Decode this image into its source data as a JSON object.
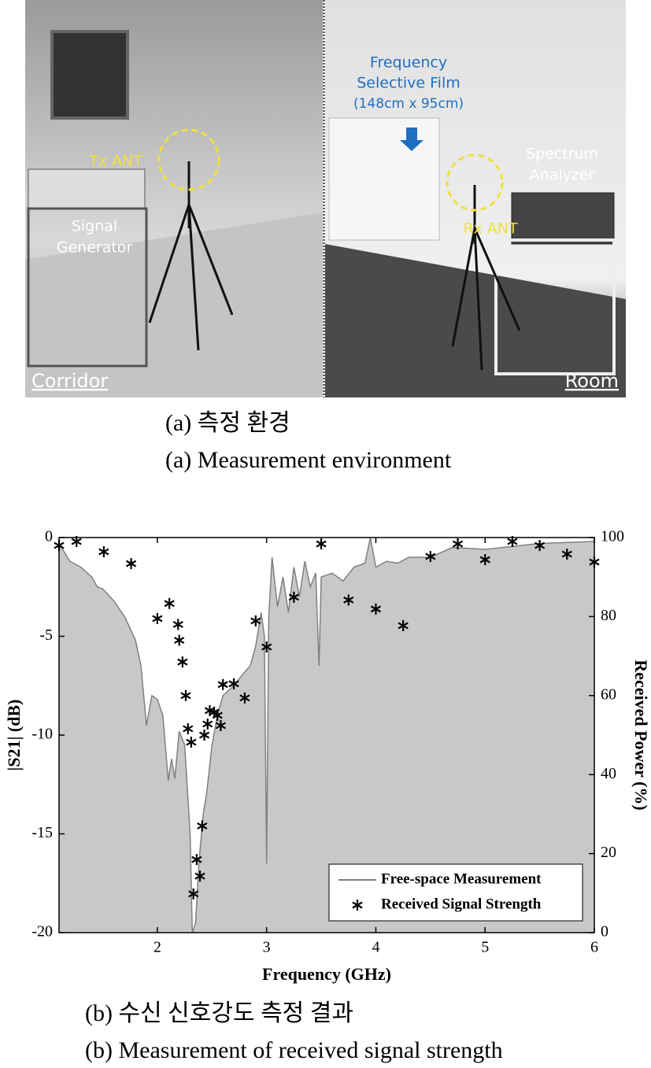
{
  "photo": {
    "tx_label": "Tx ANT",
    "signal_generator_label": [
      "Signal",
      "Generator"
    ],
    "fsf_label": [
      "Frequency",
      "Selective Film",
      "(148cm x 95cm)"
    ],
    "spectrum_label": [
      "Spectrum",
      "Analyzer"
    ],
    "rx_label": "Rx ANT",
    "left_label": "Corridor",
    "right_label": "Room",
    "caption_ko": "(a) 측정 환경",
    "caption_en": "(a) Measurement environment"
  },
  "chart_data": {
    "type": "line",
    "xlabel": "Frequency (GHz)",
    "ylabel": "|S21| (dB)",
    "y2label": "Received Power (%)",
    "xlim": [
      1.1,
      6
    ],
    "xticks": [
      2,
      3,
      4,
      5,
      6
    ],
    "ylim": [
      -20,
      0
    ],
    "yticks": [
      -20,
      -15,
      -10,
      -5,
      0
    ],
    "y2lim": [
      0,
      100
    ],
    "y2ticks": [
      0,
      20,
      40,
      60,
      80,
      100
    ],
    "legend": "lower right",
    "series": [
      {
        "name": "Free-space Measurement",
        "type": "line",
        "color": "#808080",
        "fill": "#c8c8c8",
        "x": [
          1.1,
          1.2,
          1.3,
          1.4,
          1.45,
          1.5,
          1.6,
          1.7,
          1.8,
          1.85,
          1.9,
          1.95,
          2.0,
          2.05,
          2.1,
          2.13,
          2.16,
          2.2,
          2.25,
          2.3,
          2.32,
          2.35,
          2.38,
          2.42,
          2.45,
          2.5,
          2.55,
          2.6,
          2.7,
          2.8,
          2.85,
          2.9,
          2.95,
          2.98,
          3.0,
          3.02,
          3.05,
          3.1,
          3.15,
          3.2,
          3.25,
          3.3,
          3.35,
          3.4,
          3.45,
          3.48,
          3.5,
          3.6,
          3.7,
          3.8,
          3.9,
          3.95,
          4.0,
          4.1,
          4.2,
          4.3,
          4.5,
          4.7,
          5.0,
          5.5,
          6.0
        ],
        "values": [
          -0.3,
          -1.2,
          -1.5,
          -2.0,
          -2.5,
          -2.6,
          -3.2,
          -4.0,
          -5.2,
          -6.5,
          -9.5,
          -8.0,
          -8.2,
          -9.0,
          -12.3,
          -11.2,
          -12.2,
          -9.8,
          -10.5,
          -15.0,
          -20,
          -19.5,
          -16.5,
          -14,
          -13,
          -10.5,
          -9,
          -8,
          -7.5,
          -6.8,
          -6.5,
          -5.5,
          -3.8,
          -5,
          -16.5,
          -4,
          -1.0,
          -3.5,
          -2,
          -3.8,
          -1.5,
          -3,
          -1.2,
          -2.5,
          -1.8,
          -6.5,
          -2.0,
          -1.8,
          -2.2,
          -1.5,
          -1.3,
          0,
          -1.5,
          -1.2,
          -1.3,
          -1.0,
          -1.0,
          -0.5,
          -0.6,
          -0.3,
          -0.2
        ]
      },
      {
        "name": "Received Signal Strength",
        "type": "scatter",
        "axis": "y2",
        "color": "#000000",
        "x": [
          1.1,
          1.26,
          1.51,
          1.76,
          2.0,
          2.11,
          2.19,
          2.2,
          2.23,
          2.26,
          2.28,
          2.31,
          2.33,
          2.36,
          2.39,
          2.41,
          2.43,
          2.46,
          2.48,
          2.52,
          2.55,
          2.58,
          2.6,
          2.7,
          2.8,
          2.9,
          3.0,
          3.25,
          3.5,
          3.75,
          4.0,
          4.25,
          4.5,
          4.75,
          5.0,
          5.25,
          5.5,
          5.75,
          6.0
        ],
        "values": [
          98,
          99,
          96.4,
          93.4,
          79.5,
          83.3,
          78,
          74,
          68.5,
          60,
          51.6,
          48.2,
          9.8,
          18.5,
          14.3,
          27,
          50,
          52.8,
          56.2,
          55.8,
          55,
          52.4,
          62.8,
          63,
          59.4,
          78.9,
          72.3,
          84.9,
          98.4,
          84.2,
          81.9,
          77.7,
          95.2,
          98.4,
          94.4,
          99,
          98,
          95.8,
          93.8
        ]
      }
    ],
    "caption_ko": "(b) 수신 신호강도 측정 결과",
    "caption_en": "(b) Measurement of received signal strength"
  }
}
